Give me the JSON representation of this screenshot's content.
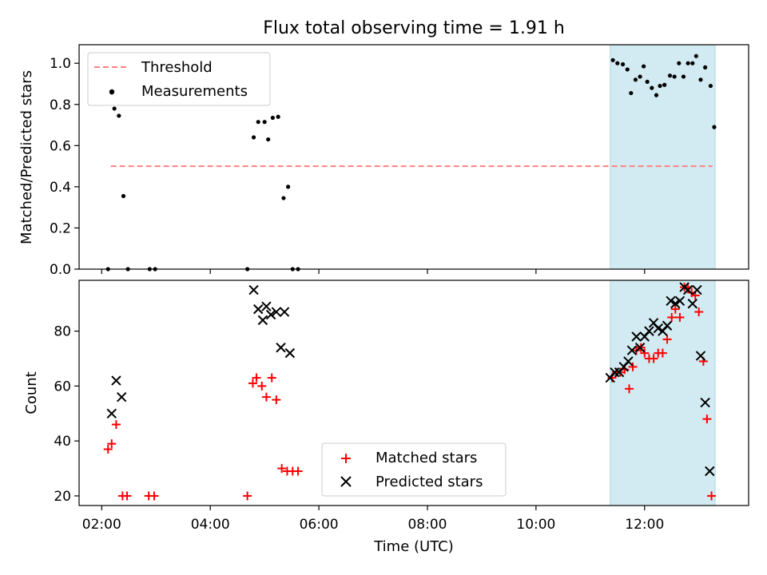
{
  "figure": {
    "title": "Flux total observing time = 1.91 h"
  },
  "colors": {
    "threshold": "#ff8080",
    "measurement": "#000000",
    "matched": "#ff0000",
    "predicted": "#000000",
    "highlight": "#add8e6"
  },
  "chart_data": [
    {
      "type": "scatter",
      "panel": "top",
      "ylabel": "Matched/Predicted stars",
      "xlabel": "",
      "xlim": [
        "01:35",
        "13:55"
      ],
      "ylim": [
        0,
        1.09
      ],
      "yticks": [
        0.0,
        0.2,
        0.4,
        0.6,
        0.8,
        1.0
      ],
      "ytick_labels": [
        "0.0",
        "0.2",
        "0.4",
        "0.6",
        "0.8",
        "1.0"
      ],
      "highlight_span": [
        "11:22",
        "13:18"
      ],
      "legend": {
        "position": "upper-left",
        "entries": [
          "Threshold",
          "Measurements"
        ]
      },
      "threshold": {
        "name": "Threshold",
        "x": [
          "02:10",
          "13:15"
        ],
        "y": 0.5
      },
      "series": [
        {
          "name": "Measurements",
          "points": [
            [
              "02:07",
              0.0
            ],
            [
              "02:11",
              0.855
            ],
            [
              "02:14",
              0.78
            ],
            [
              "02:19",
              0.745
            ],
            [
              "02:24",
              0.355
            ],
            [
              "02:29",
              0.0
            ],
            [
              "02:53",
              0.0
            ],
            [
              "02:59",
              0.0
            ],
            [
              "04:41",
              0.0
            ],
            [
              "04:48",
              0.64
            ],
            [
              "04:53",
              0.715
            ],
            [
              "05:00",
              0.715
            ],
            [
              "05:04",
              0.63
            ],
            [
              "05:09",
              0.735
            ],
            [
              "05:15",
              0.74
            ],
            [
              "05:21",
              0.345
            ],
            [
              "05:26",
              0.4
            ],
            [
              "05:31",
              0.0
            ],
            [
              "05:37",
              0.0
            ],
            [
              "11:25",
              1.015
            ],
            [
              "11:30",
              1.0
            ],
            [
              "11:36",
              0.995
            ],
            [
              "11:41",
              0.97
            ],
            [
              "11:45",
              0.855
            ],
            [
              "11:50",
              0.92
            ],
            [
              "11:55",
              0.935
            ],
            [
              "11:59",
              0.985
            ],
            [
              "12:03",
              0.91
            ],
            [
              "12:08",
              0.88
            ],
            [
              "12:13",
              0.845
            ],
            [
              "12:17",
              0.89
            ],
            [
              "12:22",
              0.895
            ],
            [
              "12:28",
              0.94
            ],
            [
              "12:33",
              0.935
            ],
            [
              "12:38",
              1.0
            ],
            [
              "12:43",
              0.935
            ],
            [
              "12:48",
              1.0
            ],
            [
              "12:53",
              1.0
            ],
            [
              "12:57",
              1.035
            ],
            [
              "13:02",
              0.92
            ],
            [
              "13:07",
              0.98
            ],
            [
              "13:13",
              0.89
            ],
            [
              "13:17",
              0.69
            ]
          ]
        }
      ]
    },
    {
      "type": "scatter",
      "panel": "bottom",
      "ylabel": "Count",
      "xlabel": "Time (UTC)",
      "xlim": [
        "01:35",
        "13:55"
      ],
      "ylim": [
        16.5,
        98.5
      ],
      "xticks": [
        "02:00",
        "04:00",
        "06:00",
        "08:00",
        "10:00",
        "12:00"
      ],
      "yticks": [
        20,
        40,
        60,
        80
      ],
      "ytick_labels": [
        "20",
        "40",
        "60",
        "80"
      ],
      "highlight_span": [
        "11:22",
        "13:18"
      ],
      "legend": {
        "position": "lower-center",
        "entries": [
          "Matched stars",
          "Predicted stars"
        ]
      },
      "series": [
        {
          "name": "Matched stars",
          "marker": "+",
          "points": [
            [
              "02:07",
              37
            ],
            [
              "02:11",
              39
            ],
            [
              "02:16",
              46
            ],
            [
              "02:23",
              20
            ],
            [
              "02:28",
              20
            ],
            [
              "02:52",
              20
            ],
            [
              "02:58",
              20
            ],
            [
              "04:41",
              20
            ],
            [
              "04:47",
              61
            ],
            [
              "04:51",
              63
            ],
            [
              "04:57",
              60
            ],
            [
              "05:02",
              56
            ],
            [
              "05:08",
              63
            ],
            [
              "05:13",
              55
            ],
            [
              "05:19",
              30
            ],
            [
              "05:25",
              29
            ],
            [
              "05:31",
              29
            ],
            [
              "05:37",
              29
            ],
            [
              "11:24",
              63
            ],
            [
              "11:29",
              65
            ],
            [
              "11:33",
              65
            ],
            [
              "11:38",
              66
            ],
            [
              "11:43",
              59
            ],
            [
              "11:47",
              67
            ],
            [
              "11:51",
              73
            ],
            [
              "11:56",
              74
            ],
            [
              "12:00",
              72
            ],
            [
              "12:05",
              70
            ],
            [
              "12:10",
              70
            ],
            [
              "12:15",
              72
            ],
            [
              "12:20",
              72
            ],
            [
              "12:25",
              77
            ],
            [
              "12:30",
              85
            ],
            [
              "12:34",
              88
            ],
            [
              "12:39",
              85
            ],
            [
              "12:44",
              96
            ],
            [
              "12:48",
              96
            ],
            [
              "12:52",
              94
            ],
            [
              "12:56",
              93
            ],
            [
              "13:00",
              87
            ],
            [
              "13:05",
              69
            ],
            [
              "13:09",
              48
            ],
            [
              "13:14",
              20
            ]
          ]
        },
        {
          "name": "Predicted stars",
          "marker": "x",
          "points": [
            [
              "02:11",
              50
            ],
            [
              "02:16",
              62
            ],
            [
              "02:22",
              56
            ],
            [
              "04:48",
              95
            ],
            [
              "04:53",
              88
            ],
            [
              "04:58",
              84
            ],
            [
              "05:02",
              89
            ],
            [
              "05:07",
              86
            ],
            [
              "05:13",
              87
            ],
            [
              "05:18",
              74
            ],
            [
              "05:22",
              87
            ],
            [
              "05:28",
              72
            ],
            [
              "11:22",
              63
            ],
            [
              "11:27",
              65
            ],
            [
              "11:32",
              65
            ],
            [
              "11:37",
              67
            ],
            [
              "11:42",
              69
            ],
            [
              "11:46",
              73
            ],
            [
              "11:51",
              78
            ],
            [
              "11:55",
              74
            ],
            [
              "12:00",
              78
            ],
            [
              "12:05",
              80
            ],
            [
              "12:10",
              83
            ],
            [
              "12:15",
              81
            ],
            [
              "12:20",
              80
            ],
            [
              "12:25",
              82
            ],
            [
              "12:29",
              91
            ],
            [
              "12:34",
              90
            ],
            [
              "12:39",
              91
            ],
            [
              "12:44",
              96
            ],
            [
              "12:48",
              95
            ],
            [
              "12:53",
              90
            ],
            [
              "12:58",
              95
            ],
            [
              "13:02",
              71
            ],
            [
              "13:07",
              54
            ],
            [
              "13:12",
              29
            ]
          ]
        }
      ]
    }
  ]
}
